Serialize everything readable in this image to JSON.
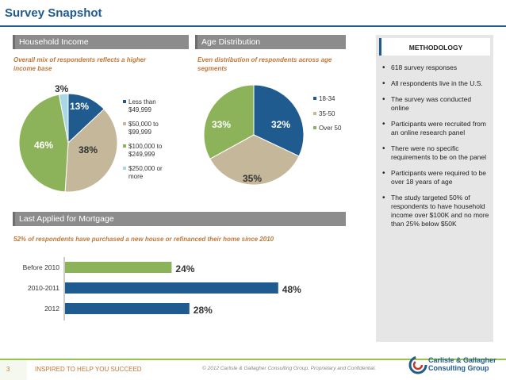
{
  "header": {
    "title": "Survey Snapshot"
  },
  "household": {
    "heading": "Household Income",
    "subtitle": "Overall mix of respondents reflects a higher income base"
  },
  "age": {
    "heading": "Age Distribution",
    "subtitle": "Even distribution of respondents across age segments"
  },
  "mortgage": {
    "heading": "Last Applied for Mortgage",
    "subtitle": "52% of respondents have purchased a new house or refinanced their home since 2010"
  },
  "methodology": {
    "title": "METHODOLOGY",
    "items": [
      "618 survey responses",
      "All respondents live in the U.S.",
      "The survey was conducted online",
      "Participants were recruited from an online research panel",
      "There were no specific requirements to be on the panel",
      "Participants were required to be over 18 years of age",
      "The study targeted 50% of respondents to have household income over $100K and no more than 25% below $50K"
    ]
  },
  "footer": {
    "page": "3",
    "tagline": "INSPIRED TO HELP YOU SUCCEED",
    "copyright": "© 2012 Carlisle & Gallagher Consulting Group.  Proprietary and Confidential.",
    "logo_line1": "Carlisle & Gallagher",
    "logo_line2": "Consulting Group"
  },
  "colors": {
    "blue": "#1f5b8f",
    "green": "#8cb35a",
    "tan": "#c4b79a",
    "lightblue": "#a9d7e6",
    "orange": "#c0783a"
  },
  "chart_data": [
    {
      "type": "pie",
      "title": "Household Income",
      "categories": [
        "Less than $49,999",
        "$50,000 to $99,999",
        "$100,000 to $249,999",
        "$250,000 or more"
      ],
      "values": [
        13,
        38,
        46,
        3
      ],
      "labels": [
        "13%",
        "38%",
        "46%",
        "3%"
      ]
    },
    {
      "type": "pie",
      "title": "Age Distribution",
      "categories": [
        "18-34",
        "35-50",
        "Over 50"
      ],
      "values": [
        32,
        35,
        33
      ],
      "labels": [
        "32%",
        "35%",
        "33%"
      ]
    },
    {
      "type": "bar",
      "orientation": "horizontal",
      "title": "Last Applied for Mortgage",
      "categories": [
        "Before 2010",
        "2010-2011",
        "2012"
      ],
      "values": [
        24,
        48,
        28
      ],
      "labels": [
        "24%",
        "48%",
        "28%"
      ]
    }
  ]
}
